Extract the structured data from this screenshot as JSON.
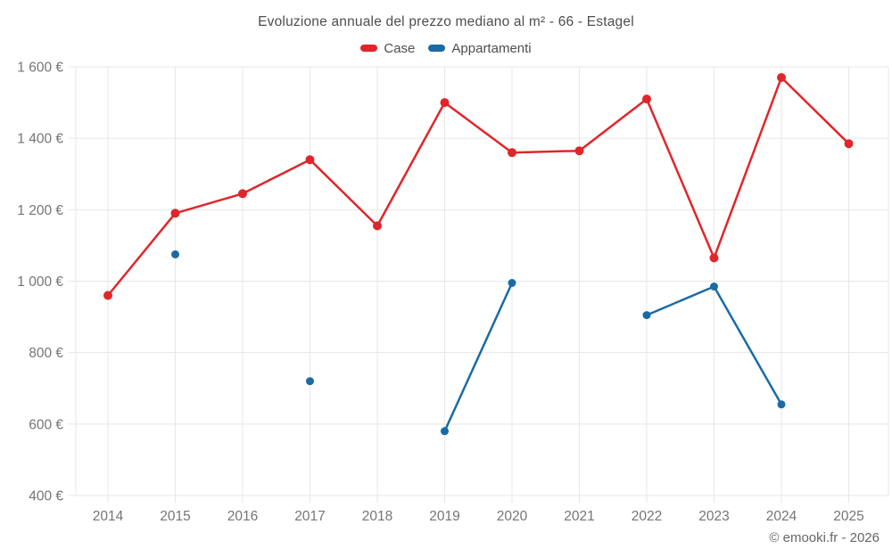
{
  "footer": {
    "credit": "© emooki.fr - 2026"
  },
  "chart_data": {
    "type": "line",
    "title": "Evoluzione annuale del prezzo mediano al m² - 66 - Estagel",
    "xlabel": "",
    "ylabel": "",
    "categories": [
      "2014",
      "2015",
      "2016",
      "2017",
      "2018",
      "2019",
      "2020",
      "2021",
      "2022",
      "2023",
      "2024",
      "2025"
    ],
    "ylim": [
      400,
      1600
    ],
    "grid": true,
    "legend_position": "top",
    "yticks": [
      {
        "value": 400,
        "label": "400 €"
      },
      {
        "value": 600,
        "label": "600 €"
      },
      {
        "value": 800,
        "label": "800 €"
      },
      {
        "value": 1000,
        "label": "1 000 €"
      },
      {
        "value": 1200,
        "label": "1 200 €"
      },
      {
        "value": 1400,
        "label": "1 400 €"
      },
      {
        "value": 1600,
        "label": "1 600 €"
      }
    ],
    "series": [
      {
        "name": "Case",
        "color": "#e0262a",
        "marker_radius": 5,
        "values": [
          960,
          1190,
          1245,
          1340,
          1155,
          1500,
          1360,
          1365,
          1510,
          1065,
          1570,
          1385
        ]
      },
      {
        "name": "Appartamenti",
        "color": "#1a6ba5",
        "marker_radius": 4.5,
        "values": [
          null,
          1075,
          null,
          720,
          null,
          580,
          995,
          null,
          905,
          985,
          655,
          null
        ]
      }
    ]
  }
}
